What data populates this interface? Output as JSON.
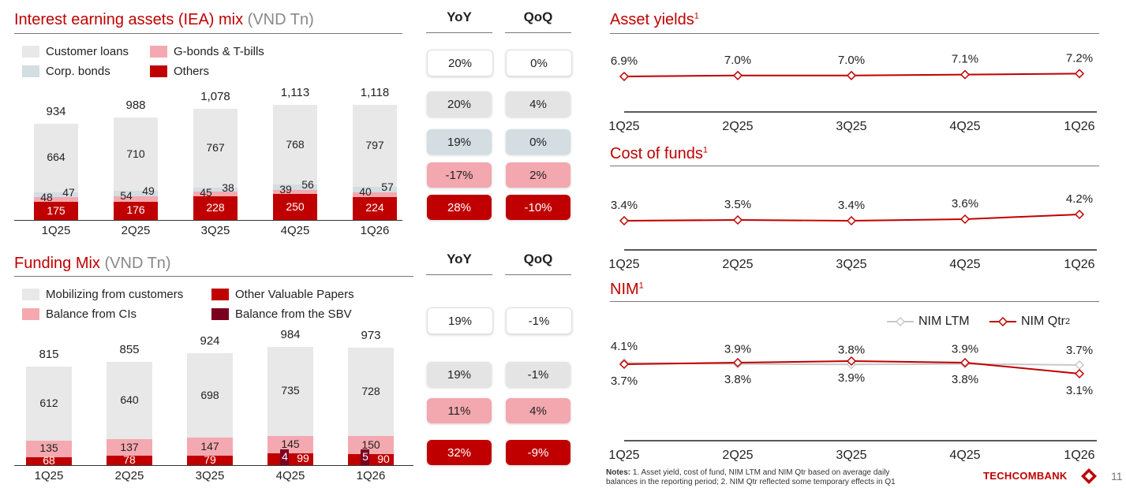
{
  "colors": {
    "red": "#c00000",
    "dark_red": "#7b0020",
    "pink": "#f4a9b0",
    "light_grey": "#e8e8e8",
    "blue_grey": "#d3dde2",
    "line_grey": "#c8c8c8"
  },
  "iea": {
    "title": "Interest earning assets (IEA) mix",
    "unit": "(VND Tn)",
    "legend": [
      "Customer loans",
      "G-bonds & T-bills",
      "Corp. bonds",
      "Others"
    ],
    "yoy_header": "YoY",
    "qoq_header": "QoQ",
    "yoy": [
      "20%",
      "20%",
      "19%",
      "-17%",
      "28%"
    ],
    "qoq": [
      "0%",
      "4%",
      "0%",
      "2%",
      "-10%"
    ]
  },
  "funding": {
    "title": "Funding Mix",
    "unit": "(VND Tn)",
    "legend": [
      "Mobilizing from customers",
      "Other Valuable Papers",
      "Balance from CIs",
      "Balance from the SBV"
    ],
    "yoy_header": "YoY",
    "qoq_header": "QoQ",
    "yoy": [
      "19%",
      "19%",
      "11%",
      "32%"
    ],
    "qoq": [
      "-1%",
      "-1%",
      "4%",
      "-9%"
    ]
  },
  "asset_yields": {
    "title": "Asset yields",
    "sup": "1"
  },
  "cost_of_funds": {
    "title": "Cost of funds",
    "sup": "1"
  },
  "nim": {
    "title": "NIM",
    "sup": "1",
    "legend_ltm": "NIM LTM",
    "legend_qtr": "NIM Qtr",
    "legend_qtr_sup": "2"
  },
  "notes": {
    "label": "Notes:",
    "line1": "1. Asset yield, cost of fund, NIM LTM and NIM Qtr based on average daily",
    "line2": "balances in the reporting period; 2. NIM Qtr reflected some temporary effects in Q1"
  },
  "logo": "TECHCOMBANK",
  "page_number": "11",
  "chart_data": [
    {
      "type": "bar",
      "stacked": true,
      "title": "Interest earning assets (IEA) mix (VND Tn)",
      "categories": [
        "1Q25",
        "2Q25",
        "3Q25",
        "4Q25",
        "1Q26"
      ],
      "totals": [
        "934",
        "988",
        "1,078",
        "1,113",
        "1,118"
      ],
      "series": [
        {
          "name": "Others",
          "values": [
            175,
            176,
            228,
            250,
            224
          ]
        },
        {
          "name": "G-bonds & T-bills",
          "values": [
            48,
            54,
            45,
            39,
            40
          ]
        },
        {
          "name": "Corp. bonds",
          "values": [
            47,
            49,
            38,
            56,
            57
          ]
        },
        {
          "name": "Customer loans",
          "values": [
            664,
            710,
            767,
            768,
            797
          ]
        }
      ]
    },
    {
      "type": "bar",
      "stacked": true,
      "title": "Funding Mix (VND Tn)",
      "categories": [
        "1Q25",
        "2Q25",
        "3Q25",
        "4Q25",
        "1Q26"
      ],
      "totals": [
        "815",
        "855",
        "924",
        "984",
        "973"
      ],
      "series": [
        {
          "name": "Balance from the SBV",
          "values": [
            0,
            0,
            0,
            4,
            5
          ]
        },
        {
          "name": "Other Valuable Papers",
          "values": [
            68,
            78,
            79,
            99,
            90
          ]
        },
        {
          "name": "Balance from CIs",
          "values": [
            135,
            137,
            147,
            145,
            150
          ]
        },
        {
          "name": "Mobilizing from customers",
          "values": [
            612,
            640,
            698,
            735,
            728
          ]
        }
      ]
    },
    {
      "type": "line",
      "title": "Asset yields",
      "x": [
        "1Q25",
        "2Q25",
        "3Q25",
        "4Q25",
        "1Q26"
      ],
      "series": [
        {
          "name": "Asset yield",
          "values": [
            6.9,
            7.0,
            7.0,
            7.1,
            7.2
          ],
          "labels": [
            "6.9%",
            "7.0%",
            "7.0%",
            "7.1%",
            "7.2%"
          ]
        }
      ]
    },
    {
      "type": "line",
      "title": "Cost of funds",
      "x": [
        "1Q25",
        "2Q25",
        "3Q25",
        "4Q25",
        "1Q26"
      ],
      "series": [
        {
          "name": "Cost of funds",
          "values": [
            3.4,
            3.5,
            3.4,
            3.6,
            4.2
          ],
          "labels": [
            "3.4%",
            "3.5%",
            "3.4%",
            "3.6%",
            "4.2%"
          ]
        }
      ]
    },
    {
      "type": "line",
      "title": "NIM",
      "x": [
        "1Q25",
        "2Q25",
        "3Q25",
        "4Q25",
        "1Q26"
      ],
      "series": [
        {
          "name": "NIM LTM",
          "values": [
            4.1,
            3.9,
            3.8,
            3.9,
            3.7
          ],
          "labels": [
            "4.1%",
            "3.9%",
            "3.8%",
            "3.9%",
            "3.7%"
          ]
        },
        {
          "name": "NIM Qtr",
          "values": [
            3.7,
            3.8,
            3.9,
            3.8,
            3.1
          ],
          "labels": [
            "3.7%",
            "3.8%",
            "3.9%",
            "3.8%",
            "3.1%"
          ]
        }
      ]
    }
  ]
}
